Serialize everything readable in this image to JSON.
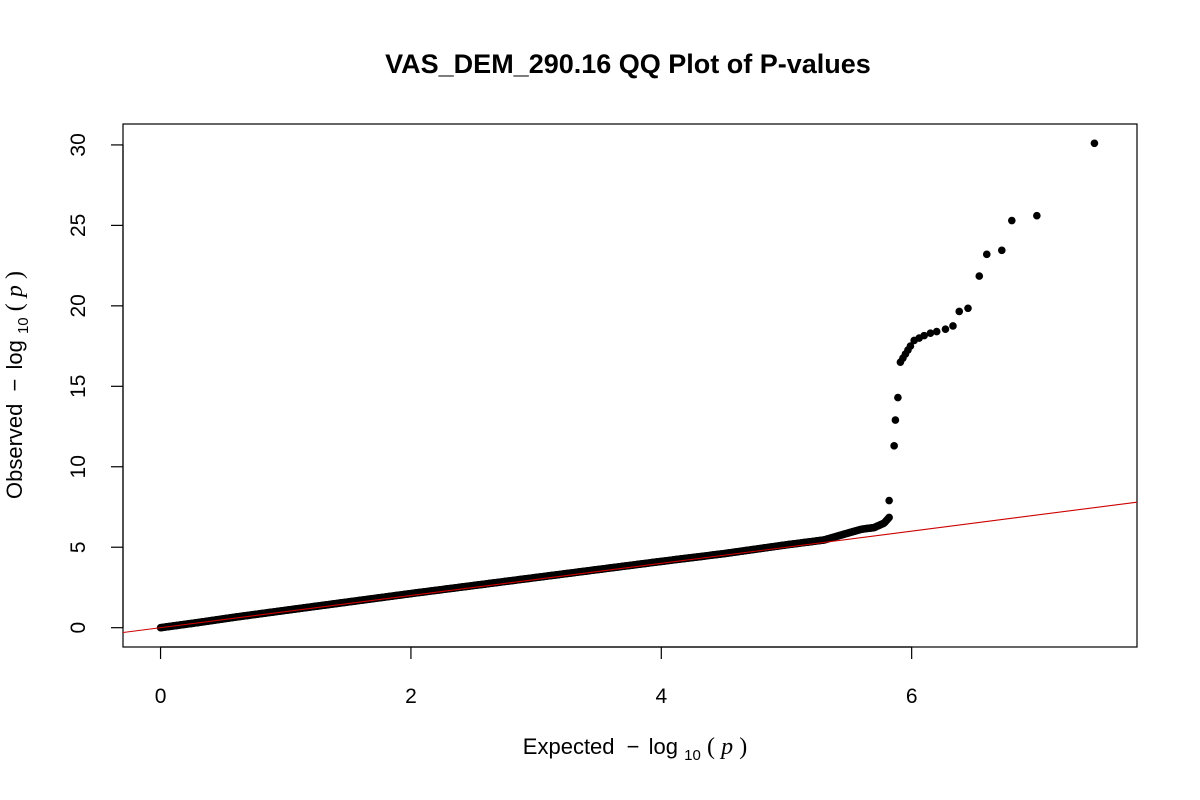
{
  "chart_data": {
    "type": "scatter",
    "title": "VAS_DEM_290.16 QQ Plot of P-values",
    "xlabel": {
      "prefix": "Expected",
      "minus": "−",
      "log": "log",
      "sub": "10",
      "open": "(",
      "var": "p",
      "close": ")"
    },
    "ylabel": {
      "prefix": "Observed",
      "minus": "−",
      "log": "log",
      "sub": "10",
      "open": "(",
      "var": "p",
      "close": ")"
    },
    "xlim": [
      -0.3,
      7.8
    ],
    "ylim": [
      -1.2,
      31.3
    ],
    "x_ticks": [
      0,
      2,
      4,
      6
    ],
    "x_tick_labels": [
      "0",
      "2",
      "4",
      "6"
    ],
    "y_ticks": [
      0,
      5,
      10,
      15,
      20,
      25,
      30
    ],
    "y_tick_labels": [
      "0",
      "5",
      "10",
      "15",
      "20",
      "25",
      "30"
    ],
    "reference_line": {
      "slope": 1,
      "intercept": 0,
      "color": "#cc0000"
    },
    "point_color": "#000000",
    "points_main_trend": [
      [
        0.0,
        0.0
      ],
      [
        0.3,
        0.32
      ],
      [
        0.6,
        0.66
      ],
      [
        1.0,
        1.08
      ],
      [
        1.5,
        1.6
      ],
      [
        2.0,
        2.12
      ],
      [
        2.5,
        2.62
      ],
      [
        3.0,
        3.12
      ],
      [
        3.5,
        3.62
      ],
      [
        4.0,
        4.12
      ],
      [
        4.5,
        4.6
      ],
      [
        5.0,
        5.15
      ],
      [
        5.3,
        5.45
      ],
      [
        5.5,
        5.9
      ],
      [
        5.6,
        6.12
      ],
      [
        5.7,
        6.22
      ],
      [
        5.78,
        6.5
      ],
      [
        5.82,
        6.85
      ]
    ],
    "points": [
      [
        5.82,
        7.9
      ],
      [
        5.86,
        11.3
      ],
      [
        5.87,
        12.9
      ],
      [
        5.89,
        14.3
      ],
      [
        5.91,
        16.5
      ],
      [
        5.93,
        16.75
      ],
      [
        5.95,
        17.0
      ],
      [
        5.97,
        17.25
      ],
      [
        5.99,
        17.5
      ],
      [
        6.02,
        17.85
      ],
      [
        6.06,
        18.0
      ],
      [
        6.1,
        18.15
      ],
      [
        6.15,
        18.3
      ],
      [
        6.2,
        18.4
      ],
      [
        6.27,
        18.55
      ],
      [
        6.33,
        18.75
      ],
      [
        6.38,
        19.65
      ],
      [
        6.45,
        19.85
      ],
      [
        6.54,
        21.85
      ],
      [
        6.6,
        23.2
      ],
      [
        6.72,
        23.45
      ],
      [
        6.8,
        25.3
      ],
      [
        7.0,
        25.6
      ],
      [
        7.46,
        30.1
      ]
    ]
  }
}
